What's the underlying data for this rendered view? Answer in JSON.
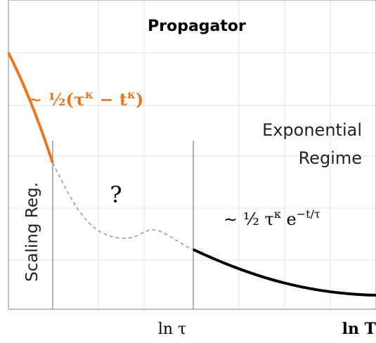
{
  "title": "Propagator",
  "orange_formula": [
    {
      "text": "∼ ½(",
      "sup": false
    },
    {
      "text": "τ",
      "sup": false
    },
    {
      "text": "κ",
      "sup": true
    },
    {
      "text": " − ",
      "sup": false
    },
    {
      "text": "t",
      "sup": false
    },
    {
      "text": "κ",
      "sup": true
    },
    {
      "text": ")",
      "sup": false
    }
  ],
  "regime_label": [
    "Exponential",
    "Regime"
  ],
  "question": "?",
  "scaling_label": "Scaling Reg.",
  "black_formula": [
    {
      "text": "∼ ½ τ",
      "sup": false
    },
    {
      "text": "κ",
      "sup": true
    },
    {
      "text": " e",
      "sup": false
    },
    {
      "text": "−t/τ",
      "sup": true
    }
  ],
  "x_labels": [
    "ln τ",
    "ln T"
  ]
}
